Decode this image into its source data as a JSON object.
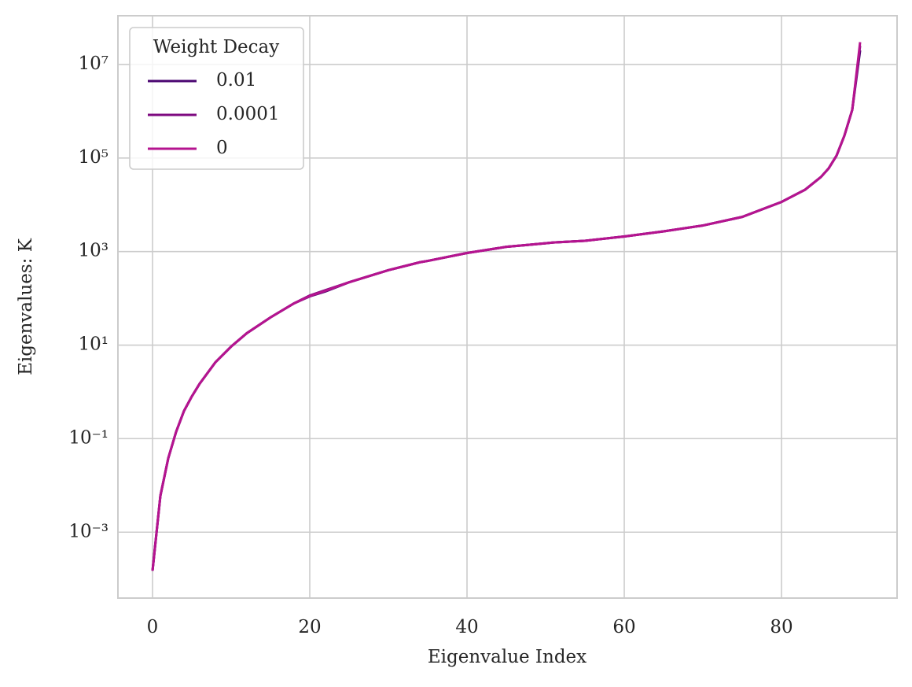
{
  "chart_data": {
    "type": "line",
    "xlabel": "Eigenvalue Index",
    "ylabel": "Eigenvalues: K",
    "legend_title": "Weight Decay",
    "legend": "upper left",
    "grid": true,
    "yscale": "log",
    "x": [
      0,
      1,
      2,
      3,
      4,
      5,
      6,
      8,
      10,
      12,
      15,
      18,
      20,
      22,
      25,
      30,
      34,
      35,
      40,
      45,
      47,
      50,
      51,
      55,
      60,
      65,
      70,
      75,
      80,
      83,
      85,
      86,
      87,
      88,
      89,
      90
    ],
    "series": [
      {
        "name": "0.01",
        "color": "#4a0570",
        "values": [
          0.00015,
          0.006,
          0.038,
          0.14,
          0.39,
          0.8,
          1.5,
          4.3,
          9.3,
          18,
          39,
          78,
          110,
          140,
          220,
          400,
          590,
          630,
          930,
          1260,
          1350,
          1500,
          1560,
          1700,
          2100,
          2700,
          3600,
          5500,
          11500,
          21000,
          39000,
          60000,
          112000,
          300000,
          1070000,
          20000000
        ]
      },
      {
        "name": "0.0001",
        "color": "#7e0a80",
        "values": [
          0.00015,
          0.006,
          0.038,
          0.14,
          0.39,
          0.8,
          1.5,
          4.3,
          9.3,
          18,
          39,
          78,
          115,
          150,
          220,
          400,
          590,
          630,
          930,
          1260,
          1350,
          1500,
          1560,
          1700,
          2100,
          2700,
          3600,
          5500,
          11500,
          21000,
          39000,
          60000,
          112000,
          300000,
          1070000,
          25000000
        ]
      },
      {
        "name": "0",
        "color": "#b5148f",
        "values": [
          0.00015,
          0.006,
          0.038,
          0.14,
          0.39,
          0.8,
          1.5,
          4.3,
          9.3,
          18,
          39,
          78,
          112,
          145,
          220,
          400,
          590,
          630,
          930,
          1260,
          1350,
          1500,
          1560,
          1700,
          2100,
          2700,
          3600,
          5500,
          11500,
          21000,
          39000,
          60000,
          112000,
          300000,
          1070000,
          30000000
        ]
      }
    ],
    "xlim": [
      -4.4,
      94.7
    ],
    "xticks": [
      0,
      20,
      40,
      60,
      80
    ],
    "ylim": [
      3.9e-05,
      110000000
    ],
    "yticks": [
      {
        "value": 0.001,
        "label": "10⁻³"
      },
      {
        "value": 0.1,
        "label": "10⁻¹"
      },
      {
        "value": 10,
        "label": "10¹"
      },
      {
        "value": 1000,
        "label": "10³"
      },
      {
        "value": 100000,
        "label": "10⁵"
      },
      {
        "value": 10000000,
        "label": "10⁷"
      }
    ]
  }
}
